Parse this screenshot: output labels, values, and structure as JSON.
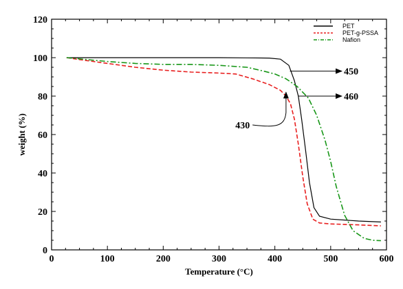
{
  "chart_data": {
    "type": "line",
    "xlabel": "Temperature (°C)",
    "ylabel": "weight (%)",
    "xlim": [
      0,
      600
    ],
    "ylim": [
      0,
      120
    ],
    "x_ticks": [
      0,
      100,
      200,
      300,
      400,
      500,
      600
    ],
    "y_ticks": [
      0,
      20,
      40,
      60,
      80,
      100,
      120
    ],
    "grid": false,
    "legend_position": "top-right",
    "series": [
      {
        "name": "PET",
        "color": "#000000",
        "dash": "solid",
        "points": [
          [
            27,
            100
          ],
          [
            100,
            100
          ],
          [
            200,
            100
          ],
          [
            300,
            100
          ],
          [
            350,
            99.9
          ],
          [
            390,
            99.8
          ],
          [
            410,
            99.2
          ],
          [
            425,
            96
          ],
          [
            435,
            88
          ],
          [
            442,
            80
          ],
          [
            448,
            68
          ],
          [
            455,
            52
          ],
          [
            462,
            35
          ],
          [
            470,
            22
          ],
          [
            480,
            17.5
          ],
          [
            500,
            16
          ],
          [
            550,
            15
          ],
          [
            590,
            14.5
          ]
        ]
      },
      {
        "name": "PET-g-PSSA",
        "color": "#e81d1d",
        "dash": "dashed",
        "points": [
          [
            27,
            100
          ],
          [
            50,
            99
          ],
          [
            100,
            97
          ],
          [
            150,
            95
          ],
          [
            200,
            93.5
          ],
          [
            250,
            92.5
          ],
          [
            300,
            92
          ],
          [
            330,
            91.5
          ],
          [
            360,
            89
          ],
          [
            390,
            86
          ],
          [
            410,
            83
          ],
          [
            420,
            80
          ],
          [
            428,
            76
          ],
          [
            435,
            68
          ],
          [
            442,
            55
          ],
          [
            450,
            38
          ],
          [
            458,
            24
          ],
          [
            468,
            16
          ],
          [
            480,
            14
          ],
          [
            500,
            13.5
          ],
          [
            550,
            13
          ],
          [
            590,
            12.5
          ]
        ]
      },
      {
        "name": "Nafion",
        "color": "#169616",
        "dash": "dashdot",
        "points": [
          [
            27,
            100
          ],
          [
            100,
            98
          ],
          [
            150,
            97
          ],
          [
            200,
            96.5
          ],
          [
            250,
            96.5
          ],
          [
            300,
            96
          ],
          [
            350,
            95
          ],
          [
            380,
            93
          ],
          [
            400,
            91.5
          ],
          [
            420,
            89
          ],
          [
            440,
            85
          ],
          [
            460,
            79
          ],
          [
            475,
            70
          ],
          [
            490,
            57
          ],
          [
            500,
            46
          ],
          [
            510,
            33
          ],
          [
            525,
            18
          ],
          [
            540,
            10
          ],
          [
            560,
            6
          ],
          [
            575,
            5
          ],
          [
            590,
            4.8
          ]
        ]
      }
    ],
    "annotations": [
      {
        "text": "450",
        "from": [
          427,
          93
        ],
        "to": [
          520,
          93
        ]
      },
      {
        "text": "460",
        "from": [
          442,
          80
        ],
        "to": [
          520,
          80
        ]
      },
      {
        "text": "430",
        "from": [
          420,
          82
        ],
        "to": [
          360,
          65
        ]
      }
    ]
  }
}
